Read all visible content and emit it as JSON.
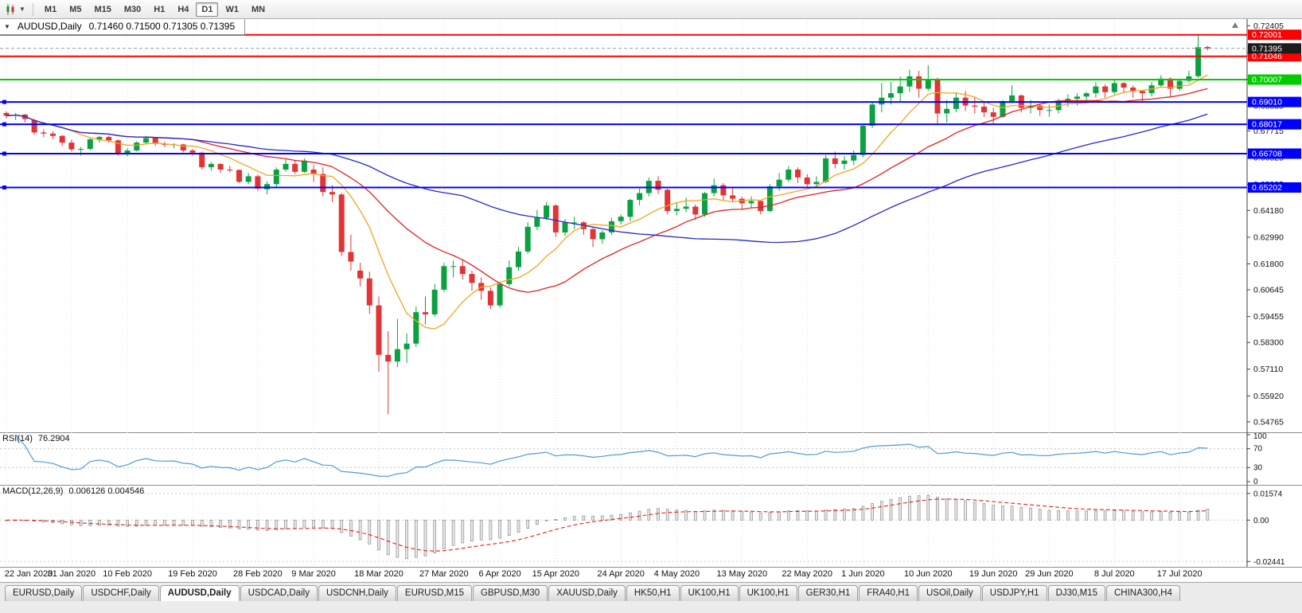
{
  "toolbar": {
    "timeframes": [
      "M1",
      "M5",
      "M15",
      "M30",
      "H1",
      "H4",
      "D1",
      "W1",
      "MN"
    ],
    "active": "D1"
  },
  "window_title": {
    "symbol_period": "AUDUSD,Daily",
    "ohlc": "0.71460 0.71500 0.71305 0.71395"
  },
  "chart_data": {
    "type": "candlestick",
    "symbol": "AUDUSD",
    "timeframe": "Daily",
    "colors": {
      "up": "#0ba141",
      "down": "#e23434"
    },
    "price_range": [
      0.543,
      0.727
    ],
    "y_ticks": [
      "0.72405",
      "0.71215",
      "0.70025",
      "0.68835",
      "0.67715",
      "0.66525",
      "0.65335",
      "0.64180",
      "0.62990",
      "0.61800",
      "0.60645",
      "0.59455",
      "0.58300",
      "0.57110",
      "0.55920",
      "0.54765"
    ],
    "x_labels": [
      {
        "label": "22 Jan 2020",
        "index": 0
      },
      {
        "label": "31 Jan 2020",
        "index": 7
      },
      {
        "label": "10 Feb 2020",
        "index": 13
      },
      {
        "label": "19 Feb 2020",
        "index": 20
      },
      {
        "label": "28 Feb 2020",
        "index": 27
      },
      {
        "label": "9 Mar 2020",
        "index": 33
      },
      {
        "label": "18 Mar 2020",
        "index": 40
      },
      {
        "label": "27 Mar 2020",
        "index": 47
      },
      {
        "label": "6 Apr 2020",
        "index": 53
      },
      {
        "label": "15 Apr 2020",
        "index": 59
      },
      {
        "label": "24 Apr 2020",
        "index": 66
      },
      {
        "label": "4 May 2020",
        "index": 72
      },
      {
        "label": "13 May 2020",
        "index": 79
      },
      {
        "label": "22 May 2020",
        "index": 86
      },
      {
        "label": "1 Jun 2020",
        "index": 92
      },
      {
        "label": "10 Jun 2020",
        "index": 99
      },
      {
        "label": "19 Jun 2020",
        "index": 106
      },
      {
        "label": "29 Jun 2020",
        "index": 112
      },
      {
        "label": "8 Jul 2020",
        "index": 119
      },
      {
        "label": "17 Jul 2020",
        "index": 126
      }
    ],
    "hlines": [
      {
        "value": 0.72001,
        "label": "0.72001",
        "color": "#ff0000",
        "width": 2,
        "handles": false
      },
      {
        "value": 0.71046,
        "label": "0.71046",
        "color": "#ff0000",
        "width": 2,
        "handles": false
      },
      {
        "value": 0.70007,
        "label": "0.70007",
        "color": "#00cc00",
        "width": 2,
        "handles": false
      },
      {
        "value": 0.6901,
        "label": "0.69010",
        "color": "#0000ff",
        "width": 2,
        "handles": true
      },
      {
        "value": 0.68017,
        "label": "0.68017",
        "color": "#0000ff",
        "width": 2,
        "handles": true
      },
      {
        "value": 0.66708,
        "label": "0.66708",
        "color": "#0000ff",
        "width": 2,
        "handles": true
      },
      {
        "value": 0.65202,
        "label": "0.65202",
        "color": "#0000ff",
        "width": 2,
        "handles": true
      }
    ],
    "current_price": {
      "value": 0.71395,
      "label": "0.71395",
      "badge_color": "#1b1b1b"
    },
    "overlays": [
      {
        "type": "sma",
        "period": 8,
        "color": "#f2a51f"
      },
      {
        "type": "sma",
        "period": 21,
        "color": "#e52020"
      },
      {
        "type": "sma",
        "period": 50,
        "color": "#2727cc"
      }
    ],
    "rsi": {
      "label": "RSI(14)",
      "value_text": "76.2904",
      "period": 14,
      "levels": [
        "100",
        "70",
        "30",
        "0"
      ],
      "dotted": [
        70,
        30
      ],
      "color": "#4f9bd6"
    },
    "macd": {
      "label": "MACD(12,26,9)",
      "values_text": "0.006126 0.004546",
      "fast": 12,
      "slow": 26,
      "signal": 9,
      "ticks": [
        "0.01574",
        "0.00",
        "-0.02441"
      ],
      "range": [
        -0.0252,
        0.018
      ],
      "hist_fill": "#e8e8e8",
      "hist_stroke": "#8c8c8c",
      "signal_color": "#e52020"
    },
    "candles": [
      [
        0.6852,
        0.686,
        0.6828,
        0.684
      ],
      [
        0.684,
        0.6853,
        0.682,
        0.6845
      ],
      [
        0.6845,
        0.6848,
        0.681,
        0.6825
      ],
      [
        0.682,
        0.6826,
        0.6755,
        0.6765
      ],
      [
        0.6765,
        0.6778,
        0.6744,
        0.676
      ],
      [
        0.676,
        0.677,
        0.6735,
        0.675
      ],
      [
        0.675,
        0.6755,
        0.6705,
        0.672
      ],
      [
        0.672,
        0.6733,
        0.668,
        0.669
      ],
      [
        0.6688,
        0.67,
        0.6662,
        0.6692
      ],
      [
        0.6692,
        0.674,
        0.6685,
        0.6735
      ],
      [
        0.6735,
        0.675,
        0.672,
        0.6745
      ],
      [
        0.6745,
        0.6752,
        0.672,
        0.673
      ],
      [
        0.673,
        0.6735,
        0.6662,
        0.667
      ],
      [
        0.6668,
        0.6695,
        0.6658,
        0.6685
      ],
      [
        0.6685,
        0.6726,
        0.668,
        0.672
      ],
      [
        0.672,
        0.6748,
        0.6712,
        0.674
      ],
      [
        0.674,
        0.6745,
        0.6705,
        0.6715
      ],
      [
        0.6715,
        0.6724,
        0.67,
        0.671
      ],
      [
        0.671,
        0.6718,
        0.6695,
        0.6712
      ],
      [
        0.6712,
        0.6715,
        0.6677,
        0.6685
      ],
      [
        0.6685,
        0.6692,
        0.6662,
        0.6675
      ],
      [
        0.6675,
        0.668,
        0.66,
        0.661
      ],
      [
        0.661,
        0.6633,
        0.6595,
        0.6625
      ],
      [
        0.6625,
        0.6628,
        0.6585,
        0.66
      ],
      [
        0.66,
        0.6617,
        0.6588,
        0.6598
      ],
      [
        0.6598,
        0.66,
        0.654,
        0.6545
      ],
      [
        0.6545,
        0.6585,
        0.6535,
        0.657
      ],
      [
        0.657,
        0.6578,
        0.6505,
        0.6515
      ],
      [
        0.6512,
        0.6548,
        0.649,
        0.6535
      ],
      [
        0.6535,
        0.661,
        0.652,
        0.66
      ],
      [
        0.66,
        0.6645,
        0.659,
        0.6625
      ],
      [
        0.6625,
        0.664,
        0.658,
        0.659
      ],
      [
        0.659,
        0.665,
        0.6585,
        0.664
      ],
      [
        0.66,
        0.662,
        0.6545,
        0.658
      ],
      [
        0.658,
        0.661,
        0.648,
        0.65
      ],
      [
        0.65,
        0.653,
        0.6455,
        0.6489
      ],
      [
        0.6489,
        0.6495,
        0.6215,
        0.6233
      ],
      [
        0.6233,
        0.631,
        0.615,
        0.619
      ],
      [
        0.615,
        0.6185,
        0.608,
        0.6115
      ],
      [
        0.6115,
        0.6145,
        0.5958,
        0.5995
      ],
      [
        0.5995,
        0.6035,
        0.57,
        0.5775
      ],
      [
        0.5775,
        0.588,
        0.551,
        0.5745
      ],
      [
        0.5745,
        0.5935,
        0.572,
        0.58
      ],
      [
        0.58,
        0.587,
        0.574,
        0.5825
      ],
      [
        0.5825,
        0.599,
        0.581,
        0.5965
      ],
      [
        0.5965,
        0.6035,
        0.591,
        0.5955
      ],
      [
        0.5955,
        0.609,
        0.5945,
        0.6065
      ],
      [
        0.6065,
        0.6185,
        0.6055,
        0.617
      ],
      [
        0.617,
        0.6195,
        0.612,
        0.617
      ],
      [
        0.617,
        0.62,
        0.611,
        0.6135
      ],
      [
        0.6135,
        0.615,
        0.606,
        0.6095
      ],
      [
        0.6095,
        0.612,
        0.602,
        0.606
      ],
      [
        0.606,
        0.6075,
        0.598,
        0.5995
      ],
      [
        0.5995,
        0.61,
        0.5985,
        0.609
      ],
      [
        0.609,
        0.6195,
        0.608,
        0.6165
      ],
      [
        0.6165,
        0.6255,
        0.615,
        0.6235
      ],
      [
        0.6235,
        0.6365,
        0.6225,
        0.6345
      ],
      [
        0.6345,
        0.642,
        0.633,
        0.6385
      ],
      [
        0.6385,
        0.6455,
        0.6375,
        0.644
      ],
      [
        0.644,
        0.6445,
        0.63,
        0.632
      ],
      [
        0.632,
        0.638,
        0.6305,
        0.6365
      ],
      [
        0.6365,
        0.639,
        0.6335,
        0.6365
      ],
      [
        0.6365,
        0.637,
        0.631,
        0.6335
      ],
      [
        0.6335,
        0.634,
        0.6255,
        0.629
      ],
      [
        0.629,
        0.633,
        0.627,
        0.632
      ],
      [
        0.632,
        0.6385,
        0.631,
        0.637
      ],
      [
        0.637,
        0.64,
        0.6355,
        0.639
      ],
      [
        0.639,
        0.647,
        0.637,
        0.6465
      ],
      [
        0.6465,
        0.6515,
        0.644,
        0.6495
      ],
      [
        0.6495,
        0.6565,
        0.648,
        0.655
      ],
      [
        0.655,
        0.657,
        0.649,
        0.651
      ],
      [
        0.651,
        0.6515,
        0.64,
        0.6415
      ],
      [
        0.6415,
        0.6455,
        0.6395,
        0.6425
      ],
      [
        0.6425,
        0.6475,
        0.641,
        0.6435
      ],
      [
        0.6435,
        0.6445,
        0.6375,
        0.64
      ],
      [
        0.64,
        0.65,
        0.639,
        0.6495
      ],
      [
        0.6495,
        0.656,
        0.648,
        0.653
      ],
      [
        0.653,
        0.654,
        0.6465,
        0.6485
      ],
      [
        0.6485,
        0.652,
        0.6455,
        0.647
      ],
      [
        0.647,
        0.648,
        0.642,
        0.645
      ],
      [
        0.645,
        0.648,
        0.643,
        0.646
      ],
      [
        0.646,
        0.6465,
        0.64,
        0.6415
      ],
      [
        0.6415,
        0.6535,
        0.641,
        0.6525
      ],
      [
        0.6525,
        0.6585,
        0.6505,
        0.6555
      ],
      [
        0.6555,
        0.6615,
        0.6545,
        0.66
      ],
      [
        0.66,
        0.661,
        0.654,
        0.6565
      ],
      [
        0.6565,
        0.658,
        0.652,
        0.6535
      ],
      [
        0.6535,
        0.657,
        0.6525,
        0.6545
      ],
      [
        0.6545,
        0.6665,
        0.654,
        0.665
      ],
      [
        0.665,
        0.668,
        0.6605,
        0.6625
      ],
      [
        0.6625,
        0.666,
        0.66,
        0.664
      ],
      [
        0.664,
        0.6685,
        0.662,
        0.6665
      ],
      [
        0.6665,
        0.68,
        0.6655,
        0.6795
      ],
      [
        0.6795,
        0.69,
        0.6785,
        0.689
      ],
      [
        0.689,
        0.6985,
        0.6855,
        0.692
      ],
      [
        0.692,
        0.699,
        0.689,
        0.694
      ],
      [
        0.694,
        0.7015,
        0.6905,
        0.697
      ],
      [
        0.697,
        0.7045,
        0.6945,
        0.7015
      ],
      [
        0.7015,
        0.704,
        0.692,
        0.696
      ],
      [
        0.696,
        0.7064,
        0.695,
        0.7
      ],
      [
        0.7,
        0.701,
        0.68,
        0.685
      ],
      [
        0.685,
        0.691,
        0.681,
        0.687
      ],
      [
        0.687,
        0.6945,
        0.6855,
        0.692
      ],
      [
        0.692,
        0.695,
        0.686,
        0.6885
      ],
      [
        0.6885,
        0.6925,
        0.685,
        0.688
      ],
      [
        0.688,
        0.69,
        0.6835,
        0.6855
      ],
      [
        0.6855,
        0.6875,
        0.6805,
        0.6835
      ],
      [
        0.6835,
        0.691,
        0.683,
        0.6905
      ],
      [
        0.6905,
        0.6975,
        0.6895,
        0.693
      ],
      [
        0.693,
        0.6935,
        0.6855,
        0.6875
      ],
      [
        0.6875,
        0.691,
        0.685,
        0.6885
      ],
      [
        0.6885,
        0.689,
        0.684,
        0.6865
      ],
      [
        0.6865,
        0.689,
        0.6835,
        0.6865
      ],
      [
        0.6865,
        0.6915,
        0.685,
        0.69
      ],
      [
        0.69,
        0.6935,
        0.688,
        0.6915
      ],
      [
        0.6915,
        0.694,
        0.6885,
        0.6925
      ],
      [
        0.6925,
        0.6945,
        0.691,
        0.694
      ],
      [
        0.694,
        0.699,
        0.692,
        0.697
      ],
      [
        0.697,
        0.698,
        0.692,
        0.6945
      ],
      [
        0.6945,
        0.7,
        0.6935,
        0.6985
      ],
      [
        0.6985,
        0.699,
        0.6945,
        0.6965
      ],
      [
        0.6965,
        0.6975,
        0.692,
        0.695
      ],
      [
        0.695,
        0.6955,
        0.69,
        0.694
      ],
      [
        0.694,
        0.699,
        0.6925,
        0.6975
      ],
      [
        0.6975,
        0.702,
        0.6965,
        0.7005
      ],
      [
        0.7005,
        0.701,
        0.6925,
        0.696
      ],
      [
        0.696,
        0.7005,
        0.695,
        0.6995
      ],
      [
        0.6995,
        0.704,
        0.6985,
        0.7015
      ],
      [
        0.7016,
        0.7203,
        0.7008,
        0.7145
      ],
      [
        0.7146,
        0.715,
        0.71305,
        0.71395
      ]
    ]
  },
  "bottom_tabs": {
    "active_index": 2,
    "tabs": [
      "EURUSD,Daily",
      "USDCHF,Daily",
      "AUDUSD,Daily",
      "USDCAD,Daily",
      "USDCNH,Daily",
      "EURUSD,M15",
      "GBPUSD,M30",
      "XAUUSD,Daily",
      "HK50,H1",
      "UK100,H1",
      "UK100,H1",
      "GER30,H1",
      "FRA40,H1",
      "USOil,Daily",
      "USDJPY,H1",
      "DJ30,M15",
      "CHINA300,H4"
    ]
  }
}
